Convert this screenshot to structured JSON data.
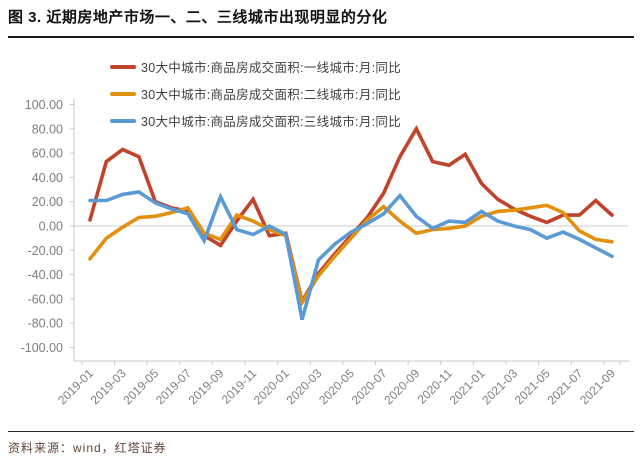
{
  "figure": {
    "title": "图 3. 近期房地产市场一、二、三线城市出现明显的分化"
  },
  "source": {
    "text": "资料来源：wind，红塔证券"
  },
  "colors": {
    "tier1_red": "#C1432B",
    "tier2_orange": "#E2900F",
    "tier3_blue": "#5B9BD5",
    "axis_line": "#c9c9c9",
    "zero_grid": "#d6d6d6",
    "tick_text": "#7f7f7f",
    "legend_text": "#3f3f3f"
  },
  "chart_data": {
    "type": "line",
    "title": "图 3. 近期房地产市场一、二、三线城市出现明显的分化",
    "xlabel": "",
    "ylabel": "",
    "ylim": [
      -100,
      100
    ],
    "ytick_step": 20,
    "ytick_labels": [
      "100.00",
      "80.00",
      "60.00",
      "40.00",
      "20.00",
      "0.00",
      "-20.00",
      "-40.00",
      "-60.00",
      "-80.00",
      "-100.00"
    ],
    "grid": "zero-line-only",
    "legend_position": "top-center",
    "x_label_every": 2,
    "x": [
      "2019-01",
      "2019-02",
      "2019-03",
      "2019-04",
      "2019-05",
      "2019-06",
      "2019-07",
      "2019-08",
      "2019-09",
      "2019-10",
      "2019-11",
      "2019-12",
      "2020-01",
      "2020-02",
      "2020-03",
      "2020-04",
      "2020-05",
      "2020-06",
      "2020-07",
      "2020-08",
      "2020-09",
      "2020-10",
      "2020-11",
      "2020-12",
      "2021-01",
      "2021-02",
      "2021-03",
      "2021-04",
      "2021-05",
      "2021-06",
      "2021-07",
      "2021-08",
      "2021-09"
    ],
    "series": [
      {
        "name": "30大中城市:商品房成交面积:一线城市:月:同比",
        "color": "#C1432B",
        "values": [
          5,
          53,
          63,
          57,
          20,
          15,
          12,
          -8,
          -16,
          4,
          22,
          -8,
          -6,
          -62,
          -39,
          -23,
          -8,
          7,
          27,
          57,
          80,
          53,
          50,
          59,
          35,
          22,
          14,
          8,
          3,
          9,
          9,
          21,
          9
        ]
      },
      {
        "name": "30大中城市:商品房成交面积:二线城市:月:同比",
        "color": "#E2900F",
        "values": [
          -27,
          -10,
          -1,
          7,
          8,
          11,
          15,
          -6,
          -11,
          9,
          4,
          -3,
          -8,
          -63,
          -41,
          -25,
          -10,
          5,
          16,
          4,
          -6,
          -3,
          -2,
          0,
          8,
          12,
          13,
          15,
          17,
          11,
          -4,
          -11,
          -13
        ]
      },
      {
        "name": "30大中城市:商品房成交面积:三线城市:月:同比",
        "color": "#5B9BD5",
        "values": [
          21,
          21,
          26,
          28,
          19,
          14,
          10,
          -12,
          24,
          -3,
          -7,
          0,
          -7,
          -77,
          -28,
          -15,
          -5,
          2,
          10,
          25,
          8,
          -2,
          4,
          3,
          12,
          4,
          0,
          -3,
          -10,
          -5,
          -11,
          -18,
          -25
        ]
      }
    ]
  }
}
